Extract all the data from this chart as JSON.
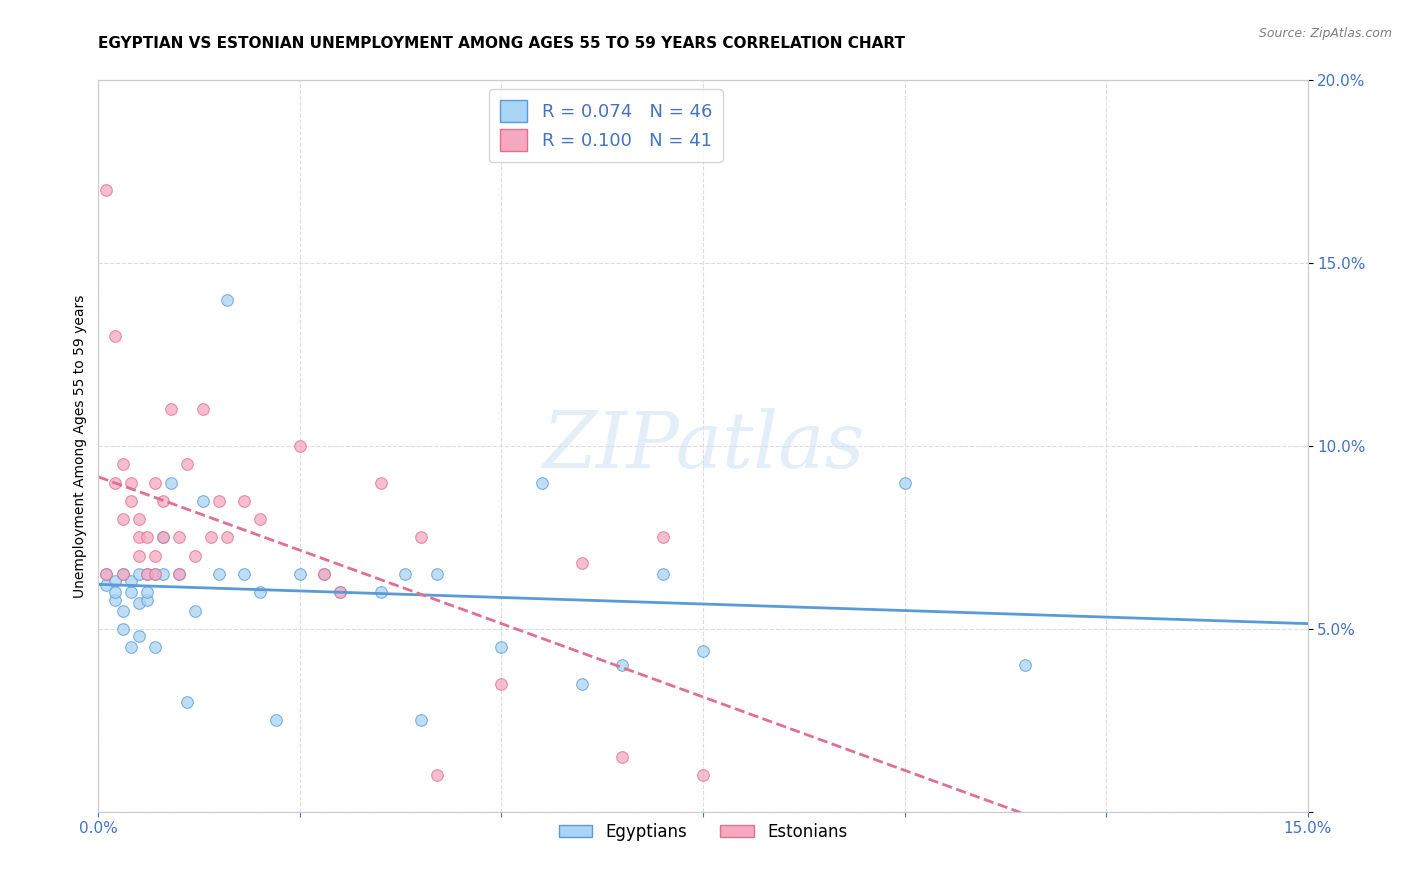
{
  "title": "EGYPTIAN VS ESTONIAN UNEMPLOYMENT AMONG AGES 55 TO 59 YEARS CORRELATION CHART",
  "source": "Source: ZipAtlas.com",
  "ylabel": "Unemployment Among Ages 55 to 59 years",
  "xlabel": "",
  "xlim": [
    0.0,
    0.15
  ],
  "ylim": [
    0.0,
    0.2
  ],
  "xticks": [
    0.0,
    0.025,
    0.05,
    0.075,
    0.1,
    0.125,
    0.15
  ],
  "xtick_labels": [
    "0.0%",
    "",
    "",
    "",
    "",
    "",
    "15.0%"
  ],
  "ytick_labels": [
    "",
    "5.0%",
    "10.0%",
    "15.0%",
    "20.0%"
  ],
  "yticks": [
    0.0,
    0.05,
    0.1,
    0.15,
    0.2
  ],
  "egyptian_color": "#a8d4f5",
  "estonian_color": "#f5a8c0",
  "egyptian_line_color": "#5b9bd5",
  "estonian_line_color": "#e07090",
  "background_color": "#ffffff",
  "grid_color": "#dddddd",
  "legend_R_egyptian": "0.074",
  "legend_N_egyptian": "46",
  "legend_R_estonian": "0.100",
  "legend_N_estonian": "41",
  "egyptian_x": [
    0.001,
    0.001,
    0.002,
    0.002,
    0.002,
    0.003,
    0.003,
    0.003,
    0.004,
    0.004,
    0.004,
    0.005,
    0.005,
    0.005,
    0.006,
    0.006,
    0.006,
    0.007,
    0.007,
    0.008,
    0.008,
    0.009,
    0.01,
    0.011,
    0.012,
    0.013,
    0.015,
    0.016,
    0.018,
    0.02,
    0.022,
    0.025,
    0.028,
    0.03,
    0.035,
    0.038,
    0.04,
    0.042,
    0.05,
    0.055,
    0.06,
    0.065,
    0.07,
    0.075,
    0.1,
    0.115
  ],
  "egyptian_y": [
    0.065,
    0.062,
    0.058,
    0.063,
    0.06,
    0.055,
    0.05,
    0.065,
    0.045,
    0.06,
    0.063,
    0.057,
    0.048,
    0.065,
    0.065,
    0.058,
    0.06,
    0.045,
    0.065,
    0.065,
    0.075,
    0.09,
    0.065,
    0.03,
    0.055,
    0.085,
    0.065,
    0.14,
    0.065,
    0.06,
    0.025,
    0.065,
    0.065,
    0.06,
    0.06,
    0.065,
    0.025,
    0.065,
    0.045,
    0.09,
    0.035,
    0.04,
    0.065,
    0.044,
    0.09,
    0.04
  ],
  "estonian_x": [
    0.001,
    0.001,
    0.002,
    0.002,
    0.003,
    0.003,
    0.003,
    0.004,
    0.004,
    0.005,
    0.005,
    0.005,
    0.006,
    0.006,
    0.007,
    0.007,
    0.007,
    0.008,
    0.008,
    0.009,
    0.01,
    0.01,
    0.011,
    0.012,
    0.013,
    0.014,
    0.015,
    0.016,
    0.018,
    0.02,
    0.025,
    0.028,
    0.03,
    0.035,
    0.04,
    0.042,
    0.05,
    0.06,
    0.065,
    0.07,
    0.075
  ],
  "estonian_y": [
    0.065,
    0.17,
    0.13,
    0.09,
    0.08,
    0.095,
    0.065,
    0.085,
    0.09,
    0.07,
    0.075,
    0.08,
    0.075,
    0.065,
    0.07,
    0.065,
    0.09,
    0.085,
    0.075,
    0.11,
    0.065,
    0.075,
    0.095,
    0.07,
    0.11,
    0.075,
    0.085,
    0.075,
    0.085,
    0.08,
    0.1,
    0.065,
    0.06,
    0.09,
    0.075,
    0.01,
    0.035,
    0.068,
    0.015,
    0.075,
    0.01
  ],
  "title_fontsize": 11,
  "axis_fontsize": 10,
  "tick_fontsize": 11,
  "marker_size": 70,
  "marker_alpha": 0.75,
  "text_color_blue": "#4472c4",
  "watermark": "ZIPatlas"
}
